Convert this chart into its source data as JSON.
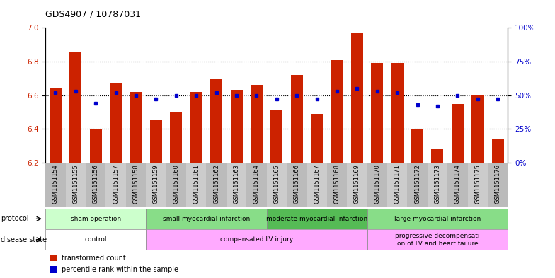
{
  "title": "GDS4907 / 10787031",
  "samples": [
    "GSM1151154",
    "GSM1151155",
    "GSM1151156",
    "GSM1151157",
    "GSM1151158",
    "GSM1151159",
    "GSM1151160",
    "GSM1151161",
    "GSM1151162",
    "GSM1151163",
    "GSM1151164",
    "GSM1151165",
    "GSM1151166",
    "GSM1151167",
    "GSM1151168",
    "GSM1151169",
    "GSM1151170",
    "GSM1151171",
    "GSM1151172",
    "GSM1151173",
    "GSM1151174",
    "GSM1151175",
    "GSM1151176"
  ],
  "bar_values": [
    6.64,
    6.86,
    6.4,
    6.67,
    6.62,
    6.45,
    6.5,
    6.62,
    6.7,
    6.63,
    6.66,
    6.51,
    6.72,
    6.49,
    6.81,
    6.97,
    6.79,
    6.79,
    6.4,
    6.28,
    6.55,
    6.6,
    6.34
  ],
  "percentile_values": [
    52,
    53,
    44,
    52,
    50,
    47,
    50,
    50,
    52,
    50,
    50,
    47,
    50,
    47,
    53,
    55,
    53,
    52,
    43,
    42,
    50,
    47,
    47
  ],
  "ylim_left": [
    6.2,
    7.0
  ],
  "ylim_right": [
    0,
    100
  ],
  "yticks_left": [
    6.2,
    6.4,
    6.6,
    6.8,
    7.0
  ],
  "yticks_right": [
    0,
    25,
    50,
    75,
    100
  ],
  "ytick_labels_right": [
    "0%",
    "25%",
    "50%",
    "75%",
    "100%"
  ],
  "bar_color": "#cc2200",
  "dot_color": "#0000cc",
  "bar_bottom": 6.2,
  "protocol_groups": [
    {
      "label": "sham operation",
      "start": 0,
      "end": 5,
      "color": "#ccffcc"
    },
    {
      "label": "small myocardial infarction",
      "start": 5,
      "end": 11,
      "color": "#88dd88"
    },
    {
      "label": "moderate myocardial infarction",
      "start": 11,
      "end": 16,
      "color": "#55bb55"
    },
    {
      "label": "large myocardial infarction",
      "start": 16,
      "end": 23,
      "color": "#88dd88"
    }
  ],
  "disease_groups": [
    {
      "label": "control",
      "start": 0,
      "end": 5,
      "color": "#ffffff"
    },
    {
      "label": "compensated LV injury",
      "start": 5,
      "end": 16,
      "color": "#ffaaff"
    },
    {
      "label": "progressive decompensati\non of LV and heart failure",
      "start": 16,
      "end": 23,
      "color": "#ffaaff"
    }
  ],
  "legend_items": [
    {
      "label": "transformed count",
      "color": "#cc2200"
    },
    {
      "label": "percentile rank within the sample",
      "color": "#0000cc"
    }
  ],
  "background_color": "#ffffff",
  "bar_label_color": "#cc2200",
  "ylabel_right_color": "#0000cc",
  "label_band_colors": [
    "#bbbbbb",
    "#cccccc"
  ]
}
